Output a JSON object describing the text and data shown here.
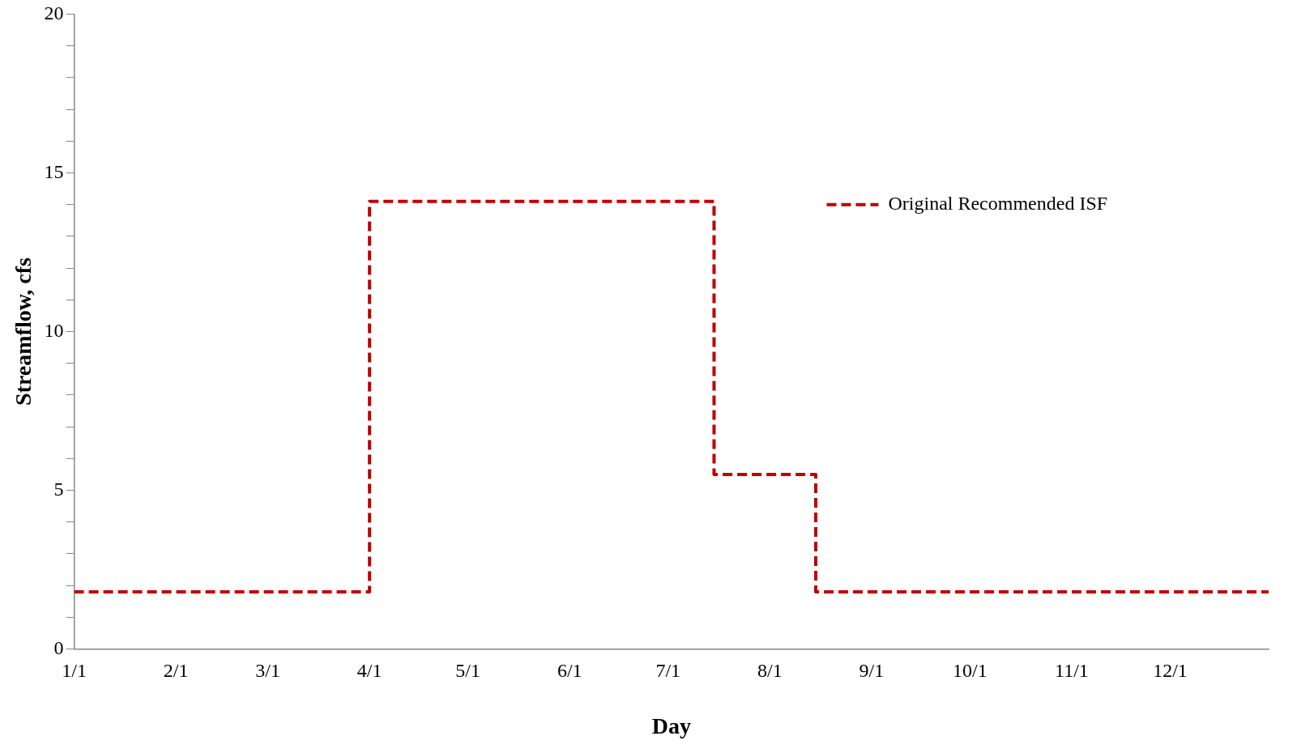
{
  "chart_data": {
    "type": "step",
    "xlabel": "Day",
    "ylabel": "Streamflow, cfs",
    "series": [
      {
        "name": "Original Recommended ISF",
        "color": "#c00000",
        "x": [
          "--01-01",
          "--04-01",
          "--07-15",
          "--08-15",
          "--12-31"
        ],
        "values": [
          1.8,
          14.1,
          5.5,
          1.8,
          1.8
        ]
      }
    ],
    "xlim": [
      "--01-01",
      "--12-31"
    ],
    "xticks": [
      {
        "value": "--01-01",
        "label": "1/1"
      },
      {
        "value": "--02-01",
        "label": "2/1"
      },
      {
        "value": "--03-01",
        "label": "3/1"
      },
      {
        "value": "--04-01",
        "label": "4/1"
      },
      {
        "value": "--05-01",
        "label": "5/1"
      },
      {
        "value": "--06-01",
        "label": "6/1"
      },
      {
        "value": "--07-01",
        "label": "7/1"
      },
      {
        "value": "--08-01",
        "label": "8/1"
      },
      {
        "value": "--09-01",
        "label": "9/1"
      },
      {
        "value": "--10-01",
        "label": "10/1"
      },
      {
        "value": "--11-01",
        "label": "11/1"
      },
      {
        "value": "--12-01",
        "label": "12/1"
      }
    ],
    "ylim": [
      0,
      20
    ],
    "yticks": [
      0,
      {
        "value": 1,
        "label": null
      },
      {
        "value": 2,
        "label": null
      },
      {
        "value": 3,
        "label": null
      },
      {
        "value": 4,
        "label": null
      },
      5,
      {
        "value": 6,
        "label": null
      },
      {
        "value": 7,
        "label": null
      },
      {
        "value": 8,
        "label": null
      },
      {
        "value": 9,
        "label": null
      },
      10,
      {
        "value": 11,
        "label": null
      },
      {
        "value": 12,
        "label": null
      },
      {
        "value": 13,
        "label": null
      },
      {
        "value": 14,
        "label": null
      },
      15,
      {
        "value": 16,
        "label": null
      },
      {
        "value": 17,
        "label": null
      },
      {
        "value": 18,
        "label": null
      },
      {
        "value": 19,
        "label": null
      },
      20
    ],
    "grid": false,
    "legend": "top right",
    "line_style": "dashed",
    "marker": "none"
  }
}
